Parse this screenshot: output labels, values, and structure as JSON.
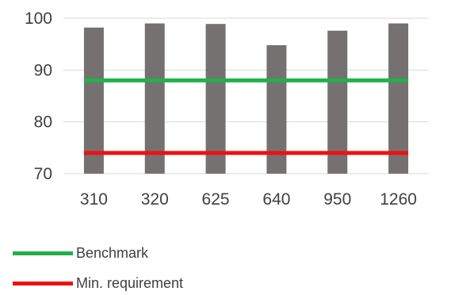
{
  "chart_data": {
    "type": "bar",
    "categories": [
      "310",
      "320",
      "625",
      "640",
      "950",
      "1260"
    ],
    "values": [
      98.2,
      99.0,
      98.9,
      94.8,
      97.6,
      99.0
    ],
    "bar_color": "#767171",
    "ylim": [
      70,
      100
    ],
    "yticks": [
      "70",
      "80",
      "90",
      "100"
    ],
    "grid": true,
    "reference_lines": [
      {
        "name": "Benchmark",
        "value": 88,
        "color": "#22b14c"
      },
      {
        "name": "Min. requirement",
        "value": 74,
        "color": "#ee1111"
      }
    ],
    "legend_position": "bottom-left"
  }
}
